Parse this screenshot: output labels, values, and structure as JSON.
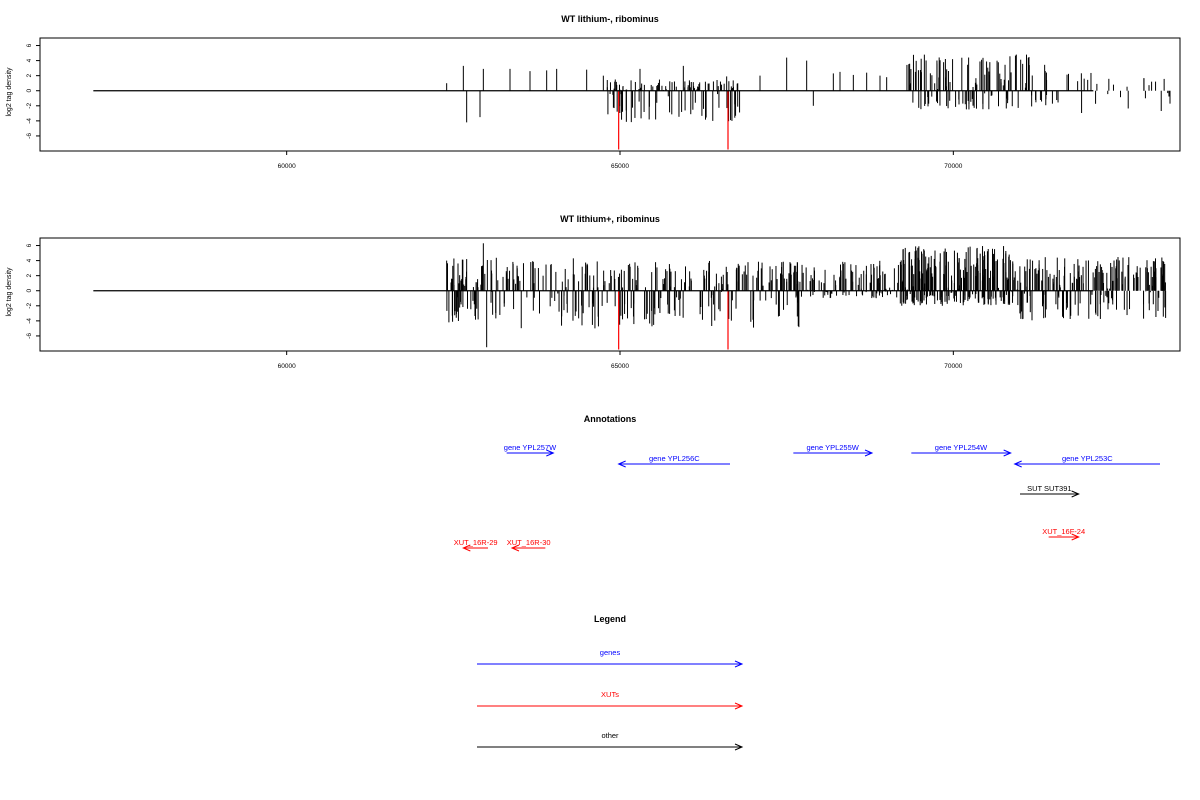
{
  "chart_data": [
    {
      "type": "bar",
      "title": "WT lithium-, ribominus",
      "xlabel": "",
      "ylabel": "log2 tag density",
      "xlim": [
        56300,
        73400
      ],
      "ylim": [
        -8,
        7
      ],
      "x_ticks": [
        60000,
        65000,
        70000
      ],
      "x_tick_labels": [
        "60000",
        "65000",
        "70000"
      ],
      "y_ticks": [
        -6,
        -4,
        -2,
        0,
        2,
        4,
        6
      ],
      "y_tick_labels": [
        "-6",
        "-4",
        "-2",
        "0",
        "2",
        "4",
        "6"
      ],
      "x_range": [
        57100,
        72100
      ],
      "grid": false,
      "series": [
        {
          "color": "#000000",
          "x": [
            62400,
            62650,
            62700,
            62900,
            62950,
            63350,
            63650,
            63900,
            64050,
            64500,
            64750,
            65300,
            65950,
            66600,
            67100,
            67500,
            67800,
            67900,
            68200,
            68300,
            68500,
            68700,
            68900,
            69000
          ],
          "y": [
            1.0,
            3.3,
            -4.2,
            -3.5,
            2.9,
            2.9,
            2.6,
            2.7,
            2.9,
            2.8,
            2.0,
            2.9,
            3.3,
            1.9,
            2.0,
            4.4,
            4.0,
            -2.0,
            2.3,
            2.5,
            2.1,
            2.4,
            2.0,
            1.8
          ]
        },
        {
          "color": "#ff0000",
          "x": [
            64980,
            66620
          ],
          "y": [
            -7.8,
            -7.8
          ]
        }
      ],
      "dense_regions": [
        {
          "x_from": 64800,
          "x_to": 66800,
          "y_pos_max": 1.5,
          "y_neg_min": -4.2,
          "color": "#000000",
          "count": 120
        },
        {
          "x_from": 69300,
          "x_to": 71400,
          "y_pos_max": 4.8,
          "y_neg_min": -2.5,
          "color": "#000000",
          "count": 130
        },
        {
          "x_from": 71400,
          "x_to": 73300,
          "y_pos_max": 2.5,
          "y_neg_min": -3.0,
          "color": "#000000",
          "count": 30
        }
      ]
    },
    {
      "type": "bar",
      "title": "WT lithium+, ribominus",
      "xlabel": "",
      "ylabel": "log2 tag density",
      "xlim": [
        56300,
        73400
      ],
      "ylim": [
        -8,
        7
      ],
      "x_ticks": [
        60000,
        65000,
        70000
      ],
      "x_tick_labels": [
        "60000",
        "65000",
        "70000"
      ],
      "y_ticks": [
        -6,
        -4,
        -2,
        0,
        2,
        4,
        6
      ],
      "y_tick_labels": [
        "-6",
        "-4",
        "-2",
        "0",
        "2",
        "4",
        "6"
      ],
      "x_range": [
        57100,
        72100
      ],
      "grid": false,
      "series": [
        {
          "color": "#000000",
          "x": [
            62400,
            62700,
            62950,
            63000,
            64300,
            67500,
            67550
          ],
          "y": [
            4.0,
            4.2,
            6.3,
            -7.5,
            4.3,
            1.2,
            3.8
          ]
        },
        {
          "color": "#ff0000",
          "x": [
            64980,
            66620
          ],
          "y": [
            -7.8,
            -7.8
          ]
        }
      ],
      "dense_regions": [
        {
          "x_from": 62400,
          "x_to": 63200,
          "y_pos_max": 4.5,
          "y_neg_min": -4.5,
          "color": "#000000",
          "count": 70
        },
        {
          "x_from": 63200,
          "x_to": 67700,
          "y_pos_max": 4.0,
          "y_neg_min": -5.0,
          "color": "#000000",
          "count": 260
        },
        {
          "x_from": 67600,
          "x_to": 69200,
          "y_pos_max": 4.0,
          "y_neg_min": -1.0,
          "color": "#000000",
          "count": 110
        },
        {
          "x_from": 69200,
          "x_to": 70900,
          "y_pos_max": 6.0,
          "y_neg_min": -2.0,
          "color": "#000000",
          "count": 260
        },
        {
          "x_from": 70900,
          "x_to": 73200,
          "y_pos_max": 4.5,
          "y_neg_min": -4.0,
          "color": "#000000",
          "count": 200
        }
      ]
    }
  ],
  "annotations": {
    "title": "Annotations",
    "xlim": [
      56300,
      73400
    ],
    "items": [
      {
        "label": "gene YPL257W",
        "color": "#0000ff",
        "x_from": 63300,
        "x_to": 64000,
        "dir": "right",
        "row": 1
      },
      {
        "label": "gene YPL256C",
        "color": "#0000ff",
        "x_from": 64980,
        "x_to": 66650,
        "dir": "left",
        "row": 2
      },
      {
        "label": "gene YPL255W",
        "color": "#0000ff",
        "x_from": 67600,
        "x_to": 68780,
        "dir": "right",
        "row": 1
      },
      {
        "label": "gene YPL254W",
        "color": "#0000ff",
        "x_from": 69370,
        "x_to": 70860,
        "dir": "right",
        "row": 1
      },
      {
        "label": "gene YPL253C",
        "color": "#0000ff",
        "x_from": 70920,
        "x_to": 73100,
        "dir": "left",
        "row": 2
      },
      {
        "label": "SUT SUT391",
        "color": "#000000",
        "x_from": 71000,
        "x_to": 71880,
        "dir": "right",
        "row": 3
      },
      {
        "label": "XUT_16F-24",
        "color": "#ff0000",
        "x_from": 71430,
        "x_to": 71880,
        "dir": "right",
        "row": 4
      },
      {
        "label": "XUT_16R-29",
        "color": "#ff0000",
        "x_from": 62650,
        "x_to": 63020,
        "dir": "left",
        "row": 5
      },
      {
        "label": "XUT_16R-30",
        "color": "#ff0000",
        "x_from": 63380,
        "x_to": 63880,
        "dir": "left",
        "row": 5
      }
    ]
  },
  "legend": {
    "title": "Legend",
    "items": [
      {
        "label": "genes",
        "color": "#0000ff"
      },
      {
        "label": "XUTs",
        "color": "#ff0000"
      },
      {
        "label": "other",
        "color": "#000000"
      }
    ]
  }
}
